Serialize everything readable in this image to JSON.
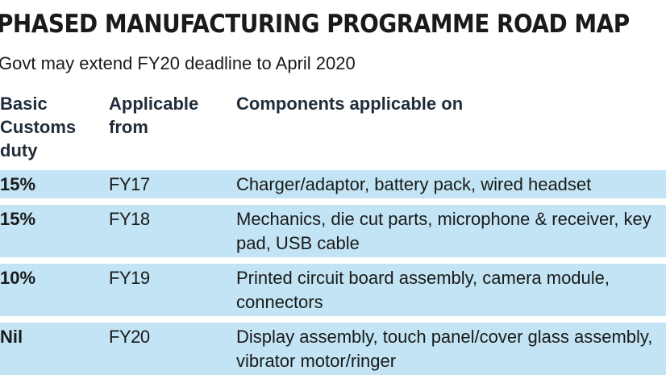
{
  "header": {
    "title": "PHASED MANUFACTURING PROGRAMME ROAD MAP",
    "subtitle": "Govt may extend FY20 deadline to April 2020"
  },
  "table": {
    "columns": [
      "Basic Customs duty",
      "Applicable from",
      "Components applicable on"
    ],
    "rows": [
      [
        "15%",
        "FY17",
        "Charger/adaptor, battery pack, wired headset"
      ],
      [
        "15%",
        "FY18",
        "Mechanics, die cut parts, microphone & receiver, key pad, USB cable"
      ],
      [
        "10%",
        "FY19",
        "Printed circuit board assembly, camera module, connectors"
      ],
      [
        "Nil",
        "FY20",
        "Display assembly, touch panel/cover glass assembly, vibrator motor/ringer"
      ]
    ]
  }
}
